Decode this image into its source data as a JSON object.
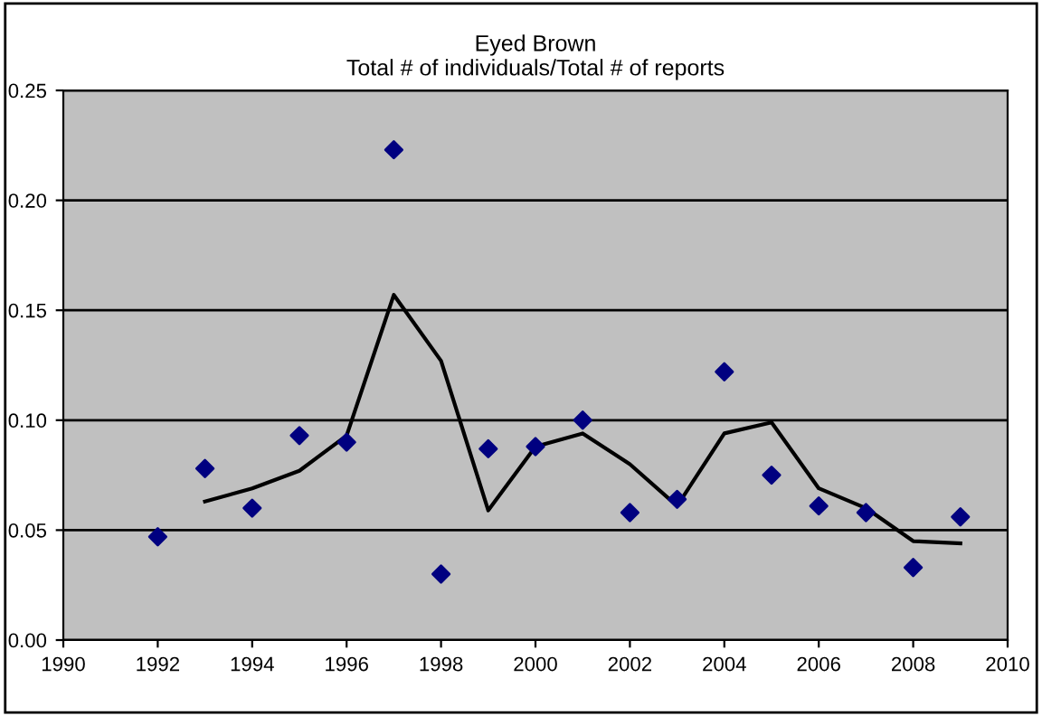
{
  "chart_data": {
    "type": "scatter",
    "title": "Eyed Brown\nTotal # of individuals/Total # of reports",
    "series": [
      {
        "color": "#000080",
        "marker": "diamond",
        "x": [
          1992,
          1993,
          1994,
          1995,
          1996,
          1997,
          1998,
          1999,
          2000,
          2001,
          2002,
          2003,
          2004,
          2005,
          2006,
          2007,
          2008,
          2009
        ],
        "values": [
          0.047,
          0.078,
          0.06,
          0.093,
          0.09,
          0.223,
          0.03,
          0.087,
          0.088,
          0.1,
          0.058,
          0.064,
          0.122,
          0.075,
          0.061,
          0.058,
          0.033,
          0.056
        ]
      },
      {
        "type": "line",
        "color": "#000000",
        "marker": "none",
        "x": [
          1993,
          1994,
          1995,
          1996,
          1997,
          1998,
          1999,
          2000,
          2001,
          2002,
          2003,
          2004,
          2005,
          2006,
          2007,
          2008,
          2009
        ],
        "values": [
          0.063,
          0.069,
          0.077,
          0.093,
          0.157,
          0.127,
          0.059,
          0.088,
          0.094,
          0.08,
          0.061,
          0.094,
          0.099,
          0.069,
          0.06,
          0.045,
          0.044
        ]
      }
    ],
    "xlim": [
      1990,
      2010
    ],
    "xticks": [
      1990,
      1992,
      1994,
      1996,
      1998,
      2000,
      2002,
      2004,
      2006,
      2008,
      2010
    ],
    "ylim": [
      0,
      0.25
    ],
    "yticks": [
      {
        "value": 0,
        "label": "0.00"
      },
      {
        "value": 0.05,
        "label": "0.05"
      },
      {
        "value": 0.1,
        "label": "0.10"
      },
      {
        "value": 0.15,
        "label": "0.15"
      },
      {
        "value": 0.2,
        "label": "0.20"
      },
      {
        "value": 0.25,
        "label": "0.25"
      }
    ],
    "grid": "y",
    "legend": false
  }
}
